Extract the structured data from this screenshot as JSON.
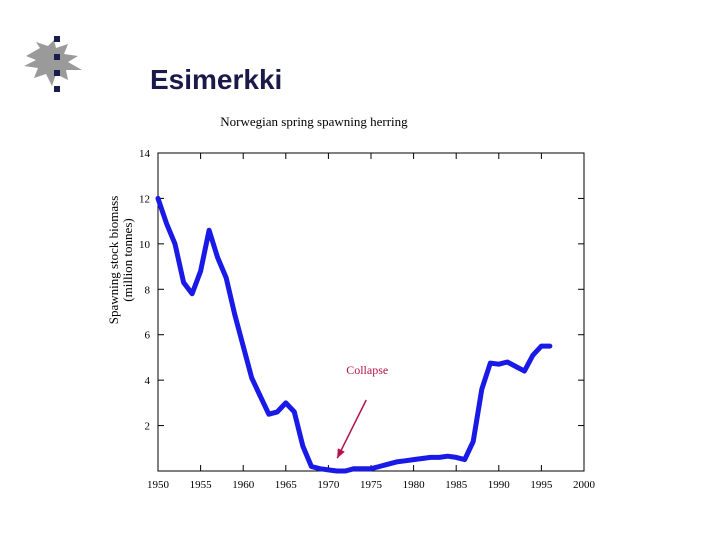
{
  "slide": {
    "title": "Esimerkki"
  },
  "colors": {
    "series": "#1a1ae6",
    "annotation": "#b3124a",
    "title": "#1a1a4a",
    "logo_gray": "#9a9a9a",
    "logo_navy": "#1b1b4d"
  },
  "chart_data": {
    "type": "line",
    "title": "Norwegian spring spawning herring",
    "xlabel": "",
    "ylabel_lines": [
      "Spawning stock biomass",
      "(million tonnes)"
    ],
    "xlim": [
      1950,
      2000
    ],
    "ylim": [
      0,
      14
    ],
    "xticks": [
      1950,
      1955,
      1960,
      1965,
      1970,
      1975,
      1980,
      1985,
      1990,
      1995,
      2000
    ],
    "yticks": [
      2,
      4,
      6,
      8,
      10,
      12,
      14
    ],
    "series": [
      {
        "name": "Spawning stock biomass",
        "x": [
          1950,
          1951,
          1952,
          1953,
          1954,
          1955,
          1956,
          1957,
          1958,
          1959,
          1960,
          1961,
          1962,
          1963,
          1964,
          1965,
          1966,
          1967,
          1968,
          1969,
          1970,
          1971,
          1972,
          1973,
          1974,
          1975,
          1976,
          1977,
          1978,
          1979,
          1980,
          1981,
          1982,
          1983,
          1984,
          1985,
          1986,
          1987,
          1988,
          1989,
          1990,
          1991,
          1992,
          1993,
          1994,
          1995,
          1996
        ],
        "y": [
          12.0,
          10.9,
          10.0,
          8.3,
          7.8,
          8.8,
          10.6,
          9.4,
          8.5,
          6.9,
          5.5,
          4.1,
          3.3,
          2.5,
          2.6,
          3.0,
          2.6,
          1.1,
          0.2,
          0.1,
          0.05,
          0.0,
          0.0,
          0.1,
          0.1,
          0.1,
          0.2,
          0.3,
          0.4,
          0.45,
          0.5,
          0.55,
          0.6,
          0.6,
          0.65,
          0.6,
          0.5,
          1.3,
          3.6,
          4.75,
          4.7,
          4.8,
          4.6,
          4.4,
          5.1,
          5.5,
          5.5
        ]
      }
    ],
    "annotations": [
      {
        "text": "Collapse",
        "points_to": {
          "x": 1970.8,
          "y": 0.3
        }
      }
    ]
  }
}
